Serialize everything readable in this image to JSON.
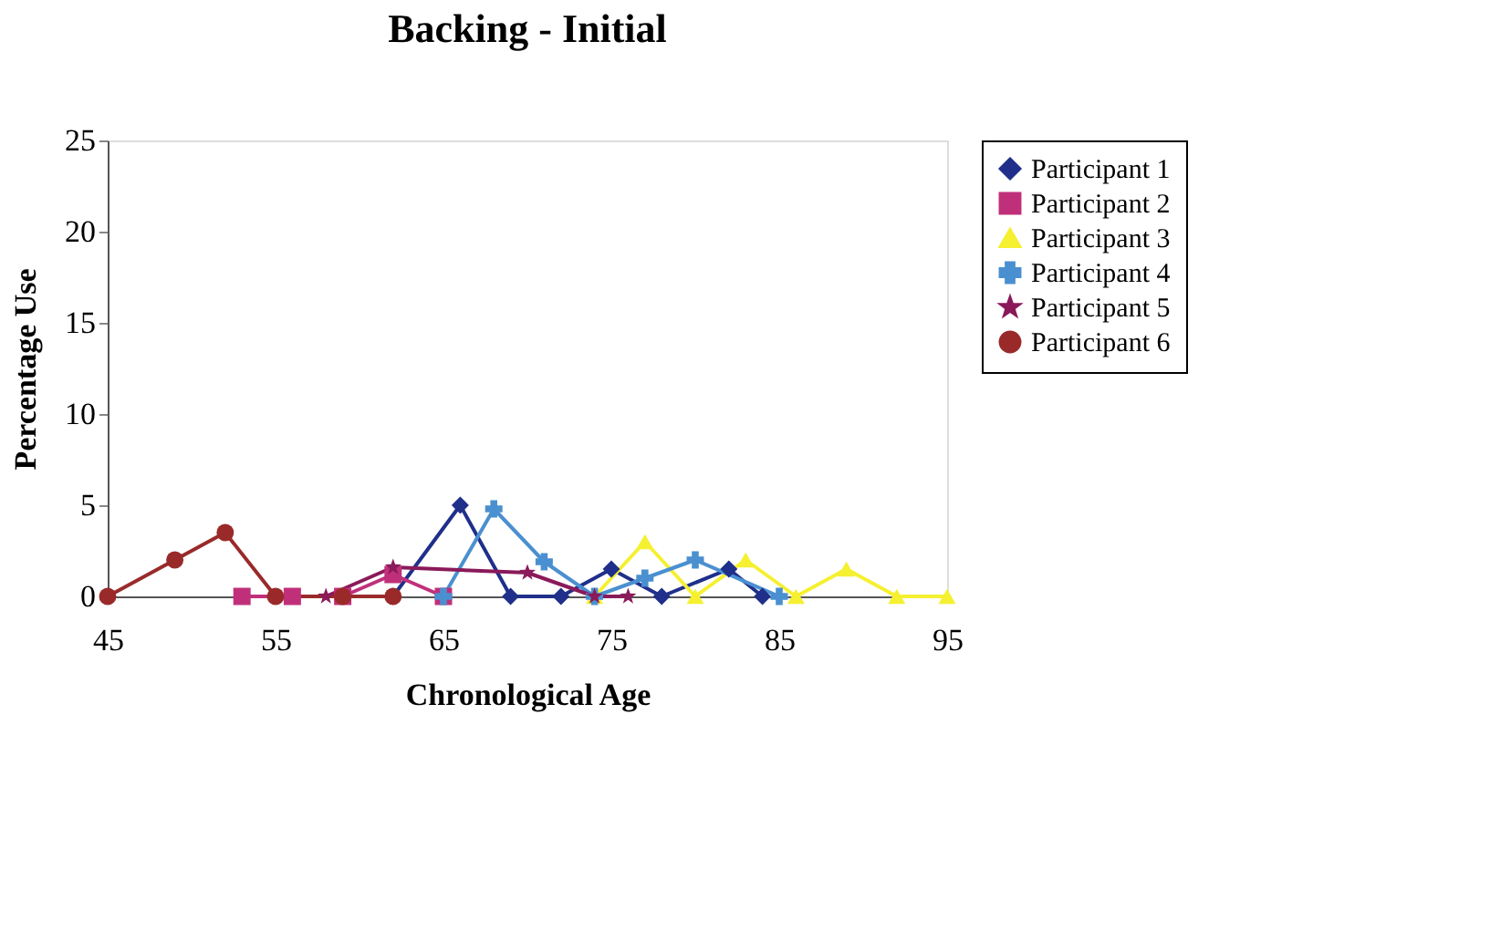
{
  "chart_data": {
    "type": "line",
    "title": "Backing - Initial",
    "xlabel": "Chronological Age",
    "ylabel": "Percentage Use",
    "xlim": [
      45,
      95
    ],
    "xticks": [
      45,
      55,
      65,
      75,
      85,
      95
    ],
    "ylim": [
      0,
      25
    ],
    "yticks": [
      0,
      5,
      10,
      15,
      20,
      25
    ],
    "grid": false,
    "legend": "right",
    "line_style": "solid",
    "series": [
      {
        "name": "Participant 1",
        "color": "#1f2f8a",
        "marker": "diamond",
        "x": [
          62,
          66,
          69,
          72,
          75,
          78,
          82,
          84
        ],
        "values": [
          0,
          5,
          0,
          0,
          1.5,
          0,
          1.5,
          0
        ]
      },
      {
        "name": "Participant 2",
        "color": "#c0307a",
        "marker": "square",
        "x": [
          53,
          56,
          59,
          62,
          65
        ],
        "values": [
          0,
          0,
          0,
          1.2,
          0
        ]
      },
      {
        "name": "Participant 3",
        "color": "#f5f030",
        "marker": "triangle",
        "x": [
          74,
          77,
          80,
          83,
          86,
          89,
          92,
          95
        ],
        "values": [
          0,
          3,
          0,
          2,
          0,
          1.5,
          0,
          0
        ]
      },
      {
        "name": "Participant 4",
        "color": "#4a90d0",
        "marker": "cross",
        "x": [
          65,
          68,
          71,
          74,
          77,
          80,
          85
        ],
        "values": [
          0,
          4.8,
          1.9,
          0,
          1,
          2,
          0
        ]
      },
      {
        "name": "Participant 5",
        "color": "#8a1a5a",
        "marker": "star",
        "x": [
          58,
          62,
          70,
          74,
          76
        ],
        "values": [
          0,
          1.6,
          1.3,
          0,
          0
        ]
      },
      {
        "name": "Participant 6",
        "color": "#9a2a2a",
        "marker": "circle",
        "x": [
          45,
          49,
          52,
          55,
          59,
          62
        ],
        "values": [
          0,
          2,
          3.5,
          0,
          0,
          0
        ]
      }
    ]
  }
}
